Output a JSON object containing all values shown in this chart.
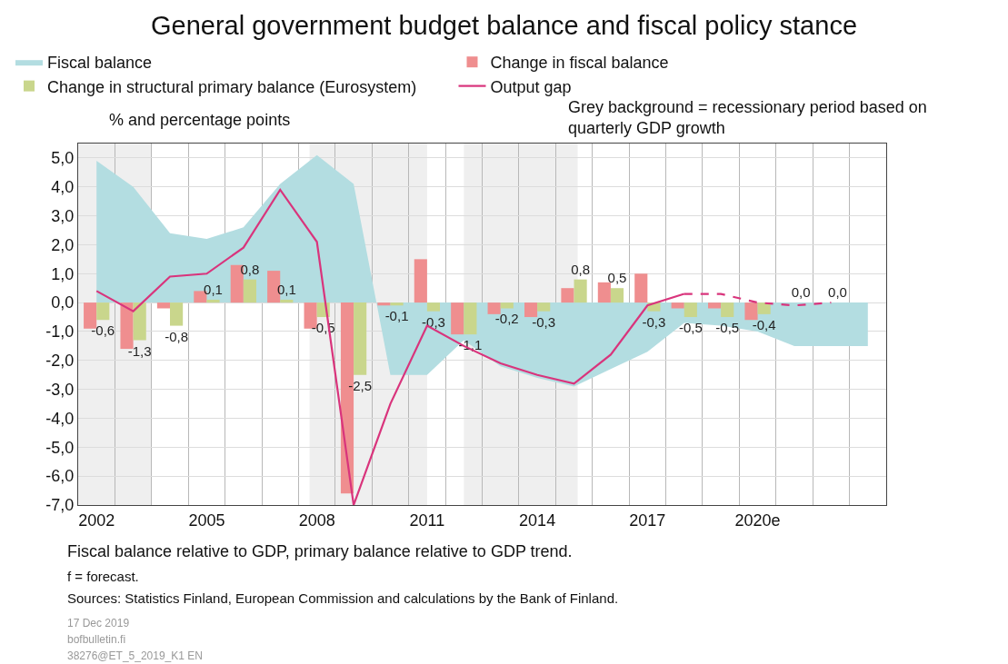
{
  "chart_data": {
    "type": "bar",
    "title": "General government budget balance and fiscal policy stance",
    "ylabel": "% and percentage points",
    "x": [
      2002,
      2003,
      2004,
      2005,
      2006,
      2007,
      2008,
      2009,
      2010,
      2011,
      2012,
      2013,
      2014,
      2015,
      2016,
      2017,
      2018,
      2019,
      2020,
      2021,
      2022,
      2023
    ],
    "xlim": [
      2001.5,
      2023.5
    ],
    "xticks": [
      2002,
      2005,
      2008,
      2011,
      2014,
      2017,
      {
        "value": 2020,
        "label": "2020e"
      }
    ],
    "ylim": [
      -7.0,
      5.5
    ],
    "yticks": [
      {
        "value": -7,
        "label": "-7,0"
      },
      {
        "value": -6,
        "label": "-6,0"
      },
      {
        "value": -5,
        "label": "-5,0"
      },
      {
        "value": -4,
        "label": "-4,0"
      },
      {
        "value": -3,
        "label": "-3,0"
      },
      {
        "value": -2,
        "label": "-2,0"
      },
      {
        "value": -1,
        "label": "-1,0"
      },
      {
        "value": 0,
        "label": "0,0"
      },
      {
        "value": 1,
        "label": "1,0"
      },
      {
        "value": 2,
        "label": "2,0"
      },
      {
        "value": 3,
        "label": "3,0"
      },
      {
        "value": 4,
        "label": "4,0"
      },
      {
        "value": 5,
        "label": "5,0"
      }
    ],
    "series": [
      {
        "name": "Fiscal balance",
        "type": "area",
        "color": "#b3dde1",
        "values": [
          4.9,
          4.0,
          2.4,
          2.2,
          2.6,
          4.1,
          5.1,
          4.1,
          -2.5,
          -2.5,
          -1.3,
          -2.2,
          -2.6,
          -2.9,
          -2.3,
          -1.7,
          -0.7,
          -0.8,
          -1.0,
          -1.5,
          -1.5,
          -1.5
        ]
      },
      {
        "name": "Change in fiscal balance",
        "color": "#ef8e8f",
        "values": [
          -0.9,
          -1.6,
          -0.2,
          0.4,
          1.3,
          1.1,
          -0.9,
          -6.6,
          -0.1,
          1.5,
          -1.1,
          -0.4,
          -0.5,
          0.5,
          0.7,
          1.0,
          -0.2,
          -0.2,
          -0.6,
          null,
          null,
          null
        ]
      },
      {
        "name": "Change in structural primary balance (Eurosystem)",
        "color": "#c9d68c",
        "values": [
          -0.6,
          -1.3,
          -0.8,
          0.1,
          0.8,
          0.1,
          -0.5,
          -2.5,
          -0.1,
          -0.3,
          -1.1,
          -0.2,
          -0.3,
          0.8,
          0.5,
          -0.3,
          -0.5,
          -0.5,
          -0.4,
          0.0,
          0.0,
          null
        ],
        "value_labels": [
          "-0,6",
          "-1,3",
          "-0,8",
          "0,1",
          "0,8",
          "0,1",
          "-0,5",
          "-2,5",
          "-0,1",
          "-0,3",
          "-1,1",
          "-0,2",
          "-0,3",
          "0,8",
          "0,5",
          "-0,3",
          "-0,5",
          "-0,5",
          "-0,4",
          "0,0",
          "0,0",
          null
        ]
      },
      {
        "name": "Output gap",
        "type": "line",
        "color": "#d9347c",
        "line_style": "solid",
        "values": [
          0.4,
          -0.3,
          0.9,
          1.0,
          1.9,
          3.9,
          2.1,
          -7.0,
          -3.5,
          -0.8,
          -1.5,
          -2.1,
          -2.5,
          -2.8,
          -1.8,
          -0.1,
          0.3,
          null,
          null,
          null,
          null,
          null
        ]
      },
      {
        "type": "line",
        "color": "#d9347c",
        "line_style": "dashed",
        "values": [
          null,
          null,
          null,
          null,
          null,
          null,
          null,
          null,
          null,
          null,
          null,
          null,
          null,
          null,
          null,
          null,
          0.3,
          0.3,
          0.0,
          -0.1,
          0.0,
          null
        ]
      }
    ],
    "bands": [
      {
        "axis": "x",
        "from": 2001.5,
        "to": 2003.5,
        "color": "#efefef"
      },
      {
        "axis": "x",
        "from": 2007.8,
        "to": 2011.0,
        "color": "#efefef"
      },
      {
        "axis": "x",
        "from": 2012.0,
        "to": 2015.1,
        "color": "#efefef"
      }
    ],
    "grid": true,
    "legend": "top",
    "annotations": [
      "Grey background = recessionary period based on\nquarterly GDP growth",
      "Fiscal balance relative to GDP, primary balance relative to GDP trend.",
      "f = forecast.",
      "Sources: Statistics Finland, European Commission and calculations by the Bank of Finland.",
      "17 Dec 2019",
      "bofbulletin.fi",
      "38276@ET_5_2019_K1 EN"
    ]
  }
}
